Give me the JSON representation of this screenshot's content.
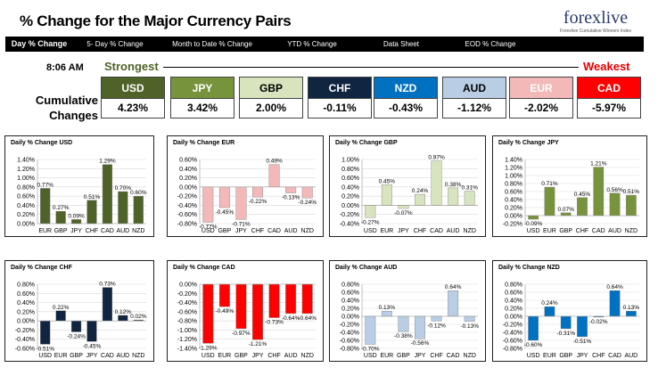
{
  "header": {
    "title": "% Change for the Major Currency Pairs",
    "logo_main": "forexlive",
    "logo_tagline": "Forexlive Cumulative Winners Index",
    "tabs": [
      "Day % Change",
      "5- Day % Change",
      "Month to Date % Change",
      "YTD % Change",
      "Data Sheet",
      "EOD % Change"
    ]
  },
  "summary": {
    "time": "8:06 AM",
    "strongest_label": "Strongest",
    "weakest_label": "Weakest",
    "cumulative_label": "Cumulative Changes",
    "currencies": [
      {
        "name": "USD",
        "value": "4.23%",
        "color": "#4f6228",
        "text": "#ffffff"
      },
      {
        "name": "JPY",
        "value": "3.42%",
        "color": "#77933c",
        "text": "#ffffff"
      },
      {
        "name": "GBP",
        "value": "2.00%",
        "color": "#d7e4bd",
        "text": "#000000"
      },
      {
        "name": "CHF",
        "value": "-0.11%",
        "color": "#10253f",
        "text": "#ffffff"
      },
      {
        "name": "NZD",
        "value": "-0.43%",
        "color": "#0070c0",
        "text": "#ffffff"
      },
      {
        "name": "AUD",
        "value": "-1.12%",
        "color": "#b9cde5",
        "text": "#000000"
      },
      {
        "name": "EUR",
        "value": "-2.02%",
        "color": "#f2b9b8",
        "text": "#ffffff"
      },
      {
        "name": "CAD",
        "value": "-5.97%",
        "color": "#ff0000",
        "text": "#ffffff"
      }
    ]
  },
  "chart_data": [
    {
      "type": "bar",
      "title": "Daily % Change USD",
      "color": "#4f6228",
      "categories": [
        "EUR",
        "GBP",
        "JPY",
        "CHF",
        "CAD",
        "AUD",
        "NZD"
      ],
      "values": [
        0.77,
        0.27,
        0.09,
        0.51,
        1.29,
        0.7,
        0.6
      ],
      "value_labels": [
        "0.77%",
        "0.27%",
        "0.09%",
        "0.51%",
        "1.29%",
        "0.70%",
        "0.60%"
      ],
      "ylim": [
        0,
        1.4
      ],
      "yticks": [
        0,
        0.2,
        0.4,
        0.6,
        0.8,
        1.0,
        1.2,
        1.4
      ],
      "ytick_labels": [
        "0.00%",
        "0.20%",
        "0.40%",
        "0.60%",
        "0.80%",
        "1.00%",
        "1.20%",
        "1.40%"
      ]
    },
    {
      "type": "bar",
      "title": "Daily % Change EUR",
      "color": "#f2b9b8",
      "categories": [
        "USD",
        "GBP",
        "JPY",
        "CHF",
        "CAD",
        "AUD",
        "NZD"
      ],
      "values": [
        -0.77,
        -0.45,
        -0.71,
        -0.22,
        0.49,
        -0.13,
        -0.24
      ],
      "value_labels": [
        "-0.77%",
        "-0.45%",
        "-0.71%",
        "-0.22%",
        "0.49%",
        "-0.13%",
        "-0.24%"
      ],
      "ylim": [
        -0.8,
        0.6
      ],
      "yticks": [
        -0.8,
        -0.6,
        -0.4,
        -0.2,
        0,
        0.2,
        0.4,
        0.6
      ],
      "ytick_labels": [
        "-0.80%",
        "-0.60%",
        "-0.40%",
        "-0.20%",
        "0.00%",
        "0.20%",
        "0.40%",
        "0.60%"
      ]
    },
    {
      "type": "bar",
      "title": "Daily % Change GBP",
      "color": "#d7e4bd",
      "categories": [
        "USD",
        "EUR",
        "JPY",
        "CHF",
        "CAD",
        "AUD",
        "NZD"
      ],
      "values": [
        -0.27,
        0.45,
        -0.07,
        0.24,
        0.97,
        0.38,
        0.31
      ],
      "value_labels": [
        "-0.27%",
        "0.45%",
        "-0.07%",
        "0.24%",
        "0.97%",
        "0.38%",
        "0.31%"
      ],
      "ylim": [
        -0.4,
        1.0
      ],
      "yticks": [
        -0.4,
        -0.2,
        0,
        0.2,
        0.4,
        0.6,
        0.8,
        1.0
      ],
      "ytick_labels": [
        "-0.40%",
        "-0.20%",
        "0.00%",
        "0.20%",
        "0.40%",
        "0.60%",
        "0.80%",
        "1.00%"
      ]
    },
    {
      "type": "bar",
      "title": "Daily % Change JPY",
      "color": "#77933c",
      "categories": [
        "USD",
        "EUR",
        "GBP",
        "CHF",
        "CAD",
        "AUD",
        "NZD"
      ],
      "values": [
        -0.09,
        0.71,
        0.07,
        0.45,
        1.21,
        0.56,
        0.51
      ],
      "value_labels": [
        "-0.09%",
        "0.71%",
        "0.07%",
        "0.45%",
        "1.21%",
        "0.56%",
        "0.51%"
      ],
      "ylim": [
        -0.2,
        1.4
      ],
      "yticks": [
        -0.2,
        0,
        0.2,
        0.4,
        0.6,
        0.8,
        1.0,
        1.2,
        1.4
      ],
      "ytick_labels": [
        "-0.20%",
        "0.00%",
        "0.20%",
        "0.40%",
        "0.60%",
        "0.80%",
        "1.00%",
        "1.20%",
        "1.40%"
      ]
    },
    {
      "type": "bar",
      "title": "Daily % Change CHF",
      "color": "#10253f",
      "categories": [
        "USD",
        "EUR",
        "GBP",
        "JPY",
        "CAD",
        "AUD",
        "NZD"
      ],
      "values": [
        -0.51,
        0.22,
        -0.24,
        -0.45,
        0.73,
        0.12,
        0.02
      ],
      "value_labels": [
        "-0.51%",
        "0.22%",
        "-0.24%",
        "-0.45%",
        "0.73%",
        "0.12%",
        "0.02%"
      ],
      "ylim": [
        -0.6,
        0.8
      ],
      "yticks": [
        -0.6,
        -0.4,
        -0.2,
        0,
        0.2,
        0.4,
        0.6,
        0.8
      ],
      "ytick_labels": [
        "-0.60%",
        "-0.40%",
        "-0.20%",
        "0.00%",
        "0.20%",
        "0.40%",
        "0.60%",
        "0.80%"
      ]
    },
    {
      "type": "bar",
      "title": "Daily % Change CAD",
      "color": "#ff0000",
      "categories": [
        "USD",
        "EUR",
        "GBP",
        "JPY",
        "CHF",
        "AUD",
        "NZD"
      ],
      "values": [
        -1.29,
        -0.49,
        -0.97,
        -1.21,
        -0.73,
        -0.64,
        -0.64
      ],
      "value_labels": [
        "-1.29%",
        "-0.49%",
        "-0.97%",
        "-1.21%",
        "-0.73%",
        "-0.64%",
        "-0.64%"
      ],
      "ylim": [
        -1.4,
        0
      ],
      "yticks": [
        -1.4,
        -1.2,
        -1.0,
        -0.8,
        -0.6,
        -0.4,
        -0.2,
        0
      ],
      "ytick_labels": [
        "-1.40%",
        "-1.20%",
        "-1.00%",
        "-0.80%",
        "-0.60%",
        "-0.40%",
        "-0.20%",
        "0.00%"
      ]
    },
    {
      "type": "bar",
      "title": "Daily % Change AUD",
      "color": "#b9cde5",
      "categories": [
        "USD",
        "EUR",
        "GBP",
        "JPY",
        "CHF",
        "CAD",
        "NZD"
      ],
      "values": [
        -0.7,
        0.13,
        -0.38,
        -0.56,
        -0.12,
        0.64,
        -0.13
      ],
      "value_labels": [
        "-0.70%",
        "0.13%",
        "-0.38%",
        "-0.56%",
        "-0.12%",
        "0.64%",
        "-0.13%"
      ],
      "ylim": [
        -0.8,
        0.8
      ],
      "yticks": [
        -0.8,
        -0.6,
        -0.4,
        -0.2,
        0,
        0.2,
        0.4,
        0.6,
        0.8
      ],
      "ytick_labels": [
        "-0.80%",
        "-0.60%",
        "-0.40%",
        "-0.20%",
        "0.00%",
        "0.20%",
        "0.40%",
        "0.60%",
        "0.80%"
      ]
    },
    {
      "type": "bar",
      "title": "Daily % Change NZD",
      "color": "#0070c0",
      "categories": [
        "USD",
        "EUR",
        "GBP",
        "JPY",
        "CHF",
        "CAD",
        "AUD"
      ],
      "values": [
        -0.6,
        0.24,
        -0.31,
        -0.51,
        -0.02,
        0.64,
        0.13
      ],
      "value_labels": [
        "-0.60%",
        "0.24%",
        "-0.31%",
        "-0.51%",
        "-0.02%",
        "0.64%",
        "0.13%"
      ],
      "ylim": [
        -0.8,
        0.8
      ],
      "yticks": [
        -0.8,
        -0.6,
        -0.4,
        -0.2,
        0,
        0.2,
        0.4,
        0.6,
        0.8
      ],
      "ytick_labels": [
        "-0.80%",
        "-0.60%",
        "-0.40%",
        "-0.20%",
        "0.00%",
        "0.20%",
        "0.40%",
        "0.60%",
        "0.80%"
      ]
    }
  ]
}
